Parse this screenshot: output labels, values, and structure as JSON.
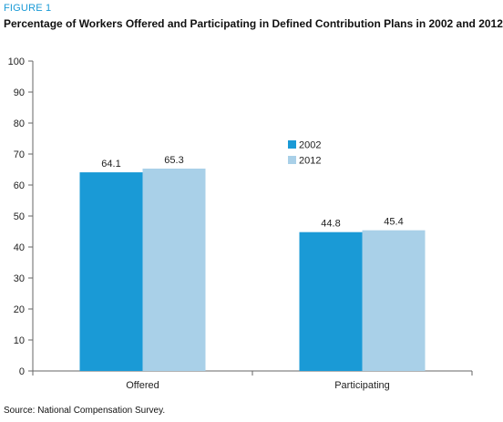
{
  "figure_label": "FIGURE 1",
  "source": "Source: National Compensation Survey.",
  "colors": {
    "s2002": "#1a9ad6",
    "s2012": "#a9d0e8",
    "axis": "#666666"
  },
  "chart_data": {
    "type": "bar",
    "title": "Percentage of Workers Offered and Participating in Defined Contribution Plans in 2002 and 2012",
    "xlabel": "",
    "ylabel": "",
    "categories": [
      "Offered",
      "Participating"
    ],
    "series": [
      {
        "name": "2002",
        "values": [
          64.1,
          44.8
        ],
        "labels": [
          "64.1",
          "44.8"
        ]
      },
      {
        "name": "2012",
        "values": [
          65.3,
          45.4
        ],
        "labels": [
          "65.3",
          "45.4"
        ]
      }
    ],
    "ylim": [
      0,
      100
    ],
    "yticks": [
      "0",
      "10",
      "20",
      "30",
      "40",
      "50",
      "60",
      "70",
      "80",
      "90",
      "100"
    ],
    "grid": false,
    "legend": "right"
  }
}
